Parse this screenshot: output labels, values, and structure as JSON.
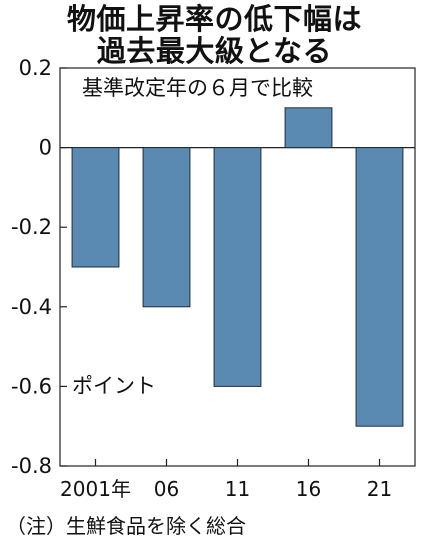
{
  "chart_data": {
    "type": "bar",
    "title": [
      "物価上昇率の低下幅は",
      "過去最大級となる"
    ],
    "subtitle": "基準改定年の６月で比較",
    "unit_label": "ポイント",
    "categories": [
      "2001年",
      "06",
      "11",
      "16",
      "21"
    ],
    "values": [
      -0.3,
      -0.4,
      -0.6,
      0.1,
      -0.7
    ],
    "ylim": [
      -0.8,
      0.2
    ],
    "yticks": [
      "0.2",
      "0",
      "-0.2",
      "-0.4",
      "-0.6",
      "-0.8"
    ],
    "ytick_values": [
      0.2,
      0,
      -0.2,
      -0.4,
      -0.6,
      -0.8
    ],
    "bar_color": "#5a89b1",
    "grid": false,
    "legend": "none"
  },
  "note": "（注）生鮮食品を除く総合"
}
